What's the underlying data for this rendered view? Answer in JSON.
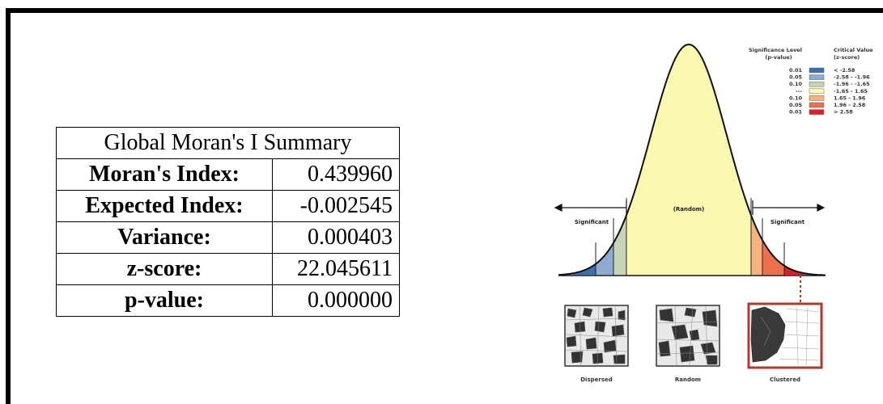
{
  "summary": {
    "title": "Global Moran's I Summary",
    "rows": [
      {
        "label": "Moran's Index:",
        "value": "0.439960"
      },
      {
        "label": "Expected Index:",
        "value": "-0.002545"
      },
      {
        "label": "Variance:",
        "value": "0.000403"
      },
      {
        "label": "z-score:",
        "value": "22.045611"
      },
      {
        "label": "p-value:",
        "value": "0.000000"
      }
    ]
  },
  "diagram": {
    "center_label": "(Random)",
    "left_label": "Significant",
    "right_label": "Significant",
    "legend": {
      "sig_header_1": "Significance Level",
      "sig_header_2": "(p-value)",
      "crit_header_1": "Critical Value",
      "crit_header_2": "(z-score)",
      "rows": [
        {
          "p": "0.01",
          "z": "< -2.58",
          "color": "#3e6fb3"
        },
        {
          "p": "0.05",
          "z": "-2.58 - -1.96",
          "color": "#8eaad2"
        },
        {
          "p": "0.10",
          "z": "-1.96 - -1.65",
          "color": "#c9d3b8"
        },
        {
          "p": "---",
          "z": "-1.65 - 1.65",
          "color": "#fbf8b2"
        },
        {
          "p": "0.10",
          "z": "1.65 - 1.96",
          "color": "#f7b27e"
        },
        {
          "p": "0.05",
          "z": "1.96 - 2.58",
          "color": "#ee6f4e"
        },
        {
          "p": "0.01",
          "z": "> 2.58",
          "color": "#d9202a"
        }
      ]
    },
    "patterns": [
      {
        "label": "Dispersed"
      },
      {
        "label": "Random"
      },
      {
        "label": "Clustered"
      }
    ]
  }
}
